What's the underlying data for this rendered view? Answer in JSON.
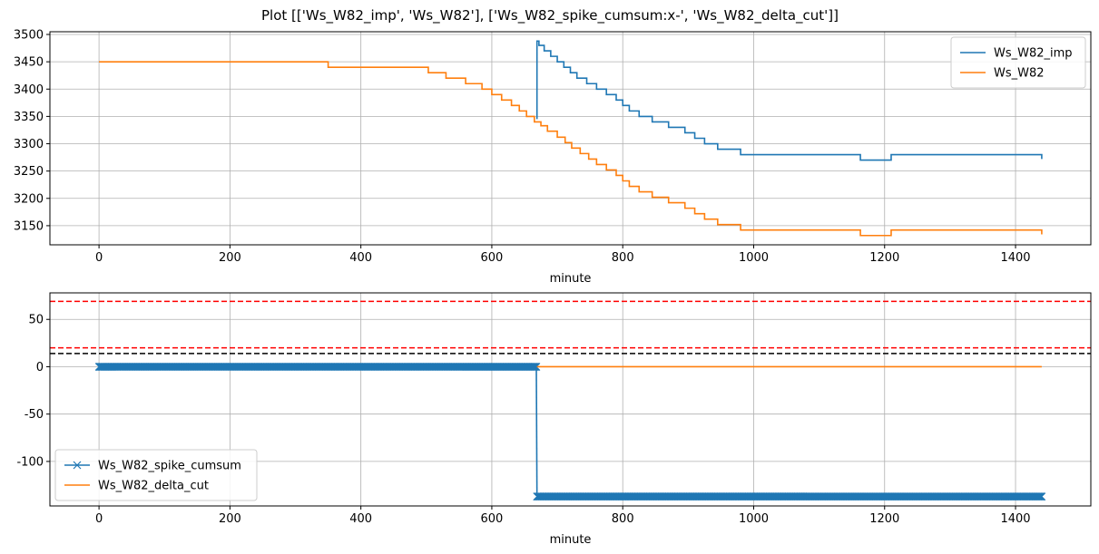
{
  "figure": {
    "title": "Plot [['Ws_W82_imp', 'Ws_W82'], ['Ws_W82_spike_cumsum:x-', 'Ws_W82_delta_cut']]"
  },
  "chart_data": [
    {
      "type": "line",
      "xlabel": "minute",
      "ylabel": "",
      "xlim": [
        -75,
        1515
      ],
      "ylim": [
        3115,
        3505
      ],
      "xticks": [
        0,
        200,
        400,
        600,
        800,
        1000,
        1200,
        1400
      ],
      "xtick_labels": [
        "0",
        "200",
        "400",
        "600",
        "800",
        "1000",
        "1200",
        "1400"
      ],
      "yticks": [
        3150,
        3200,
        3250,
        3300,
        3350,
        3400,
        3450,
        3500
      ],
      "ytick_labels": [
        "3150",
        "3200",
        "3250",
        "3300",
        "3350",
        "3400",
        "3450",
        "3500"
      ],
      "grid": true,
      "legend": "top-right",
      "series": [
        {
          "name": "Ws_W82_imp",
          "color": "#1f77b4",
          "marker": "none",
          "points": [
            [
              669,
              3345
            ],
            [
              669,
              3488
            ],
            [
              672,
              3488
            ],
            [
              672,
              3480
            ],
            [
              680,
              3480
            ],
            [
              680,
              3470
            ],
            [
              690,
              3470
            ],
            [
              690,
              3460
            ],
            [
              700,
              3460
            ],
            [
              700,
              3450
            ],
            [
              710,
              3450
            ],
            [
              710,
              3440
            ],
            [
              720,
              3440
            ],
            [
              720,
              3430
            ],
            [
              730,
              3430
            ],
            [
              730,
              3420
            ],
            [
              745,
              3420
            ],
            [
              745,
              3410
            ],
            [
              760,
              3410
            ],
            [
              760,
              3400
            ],
            [
              775,
              3400
            ],
            [
              775,
              3390
            ],
            [
              790,
              3390
            ],
            [
              790,
              3380
            ],
            [
              800,
              3380
            ],
            [
              800,
              3370
            ],
            [
              810,
              3370
            ],
            [
              810,
              3360
            ],
            [
              825,
              3360
            ],
            [
              825,
              3350
            ],
            [
              845,
              3350
            ],
            [
              845,
              3340
            ],
            [
              870,
              3340
            ],
            [
              870,
              3330
            ],
            [
              895,
              3330
            ],
            [
              895,
              3320
            ],
            [
              910,
              3320
            ],
            [
              910,
              3310
            ],
            [
              925,
              3310
            ],
            [
              925,
              3300
            ],
            [
              945,
              3300
            ],
            [
              945,
              3290
            ],
            [
              980,
              3290
            ],
            [
              980,
              3280
            ],
            [
              1163,
              3280
            ],
            [
              1163,
              3270
            ],
            [
              1210,
              3270
            ],
            [
              1210,
              3280
            ],
            [
              1440,
              3280
            ],
            [
              1440,
              3272
            ]
          ]
        },
        {
          "name": "Ws_W82",
          "color": "#ff7f0e",
          "marker": "none",
          "points": [
            [
              0,
              3450
            ],
            [
              350,
              3450
            ],
            [
              350,
              3440
            ],
            [
              503,
              3440
            ],
            [
              503,
              3430
            ],
            [
              530,
              3430
            ],
            [
              530,
              3420
            ],
            [
              560,
              3420
            ],
            [
              560,
              3410
            ],
            [
              585,
              3410
            ],
            [
              585,
              3400
            ],
            [
              600,
              3400
            ],
            [
              600,
              3390
            ],
            [
              615,
              3390
            ],
            [
              615,
              3380
            ],
            [
              630,
              3380
            ],
            [
              630,
              3370
            ],
            [
              642,
              3370
            ],
            [
              642,
              3360
            ],
            [
              653,
              3360
            ],
            [
              653,
              3350
            ],
            [
              665,
              3350
            ],
            [
              665,
              3340
            ],
            [
              675,
              3340
            ],
            [
              675,
              3333
            ],
            [
              685,
              3333
            ],
            [
              685,
              3323
            ],
            [
              700,
              3323
            ],
            [
              700,
              3312
            ],
            [
              712,
              3312
            ],
            [
              712,
              3302
            ],
            [
              722,
              3302
            ],
            [
              722,
              3292
            ],
            [
              735,
              3292
            ],
            [
              735,
              3282
            ],
            [
              748,
              3282
            ],
            [
              748,
              3272
            ],
            [
              760,
              3272
            ],
            [
              760,
              3262
            ],
            [
              775,
              3262
            ],
            [
              775,
              3252
            ],
            [
              790,
              3252
            ],
            [
              790,
              3242
            ],
            [
              800,
              3242
            ],
            [
              800,
              3232
            ],
            [
              810,
              3232
            ],
            [
              810,
              3222
            ],
            [
              825,
              3222
            ],
            [
              825,
              3212
            ],
            [
              845,
              3212
            ],
            [
              845,
              3202
            ],
            [
              870,
              3202
            ],
            [
              870,
              3192
            ],
            [
              895,
              3192
            ],
            [
              895,
              3182
            ],
            [
              910,
              3182
            ],
            [
              910,
              3172
            ],
            [
              925,
              3172
            ],
            [
              925,
              3162
            ],
            [
              945,
              3162
            ],
            [
              945,
              3152
            ],
            [
              980,
              3152
            ],
            [
              980,
              3142
            ],
            [
              1163,
              3142
            ],
            [
              1163,
              3132
            ],
            [
              1210,
              3132
            ],
            [
              1210,
              3142
            ],
            [
              1440,
              3142
            ],
            [
              1440,
              3134
            ]
          ]
        }
      ]
    },
    {
      "type": "line",
      "xlabel": "minute",
      "ylabel": "",
      "xlim": [
        -75,
        1515
      ],
      "ylim": [
        -147,
        78
      ],
      "xticks": [
        0,
        200,
        400,
        600,
        800,
        1000,
        1200,
        1400
      ],
      "xtick_labels": [
        "0",
        "200",
        "400",
        "600",
        "800",
        "1000",
        "1200",
        "1400"
      ],
      "yticks": [
        -100,
        -50,
        0,
        50
      ],
      "ytick_labels": [
        "-100",
        "-50",
        "0",
        "50"
      ],
      "grid": true,
      "legend": "bottom-left",
      "hlines": [
        {
          "y": 69,
          "color": "#ff0000",
          "style": "dashed"
        },
        {
          "y": 20,
          "color": "#ff0000",
          "style": "dashed"
        },
        {
          "y": 14,
          "color": "#000000",
          "style": "dashed"
        }
      ],
      "series": [
        {
          "name": "Ws_W82_spike_cumsum",
          "color": "#1f77b4",
          "marker": "x",
          "segments": [
            {
              "x_start": 0,
              "x_end": 668,
              "y": 0
            },
            {
              "x_start": 669,
              "x_end": 1440,
              "y": -137
            }
          ]
        },
        {
          "name": "Ws_W82_delta_cut",
          "color": "#ff7f0e",
          "marker": "none",
          "points": [
            [
              669,
              0
            ],
            [
              1440,
              0
            ]
          ]
        }
      ]
    }
  ]
}
